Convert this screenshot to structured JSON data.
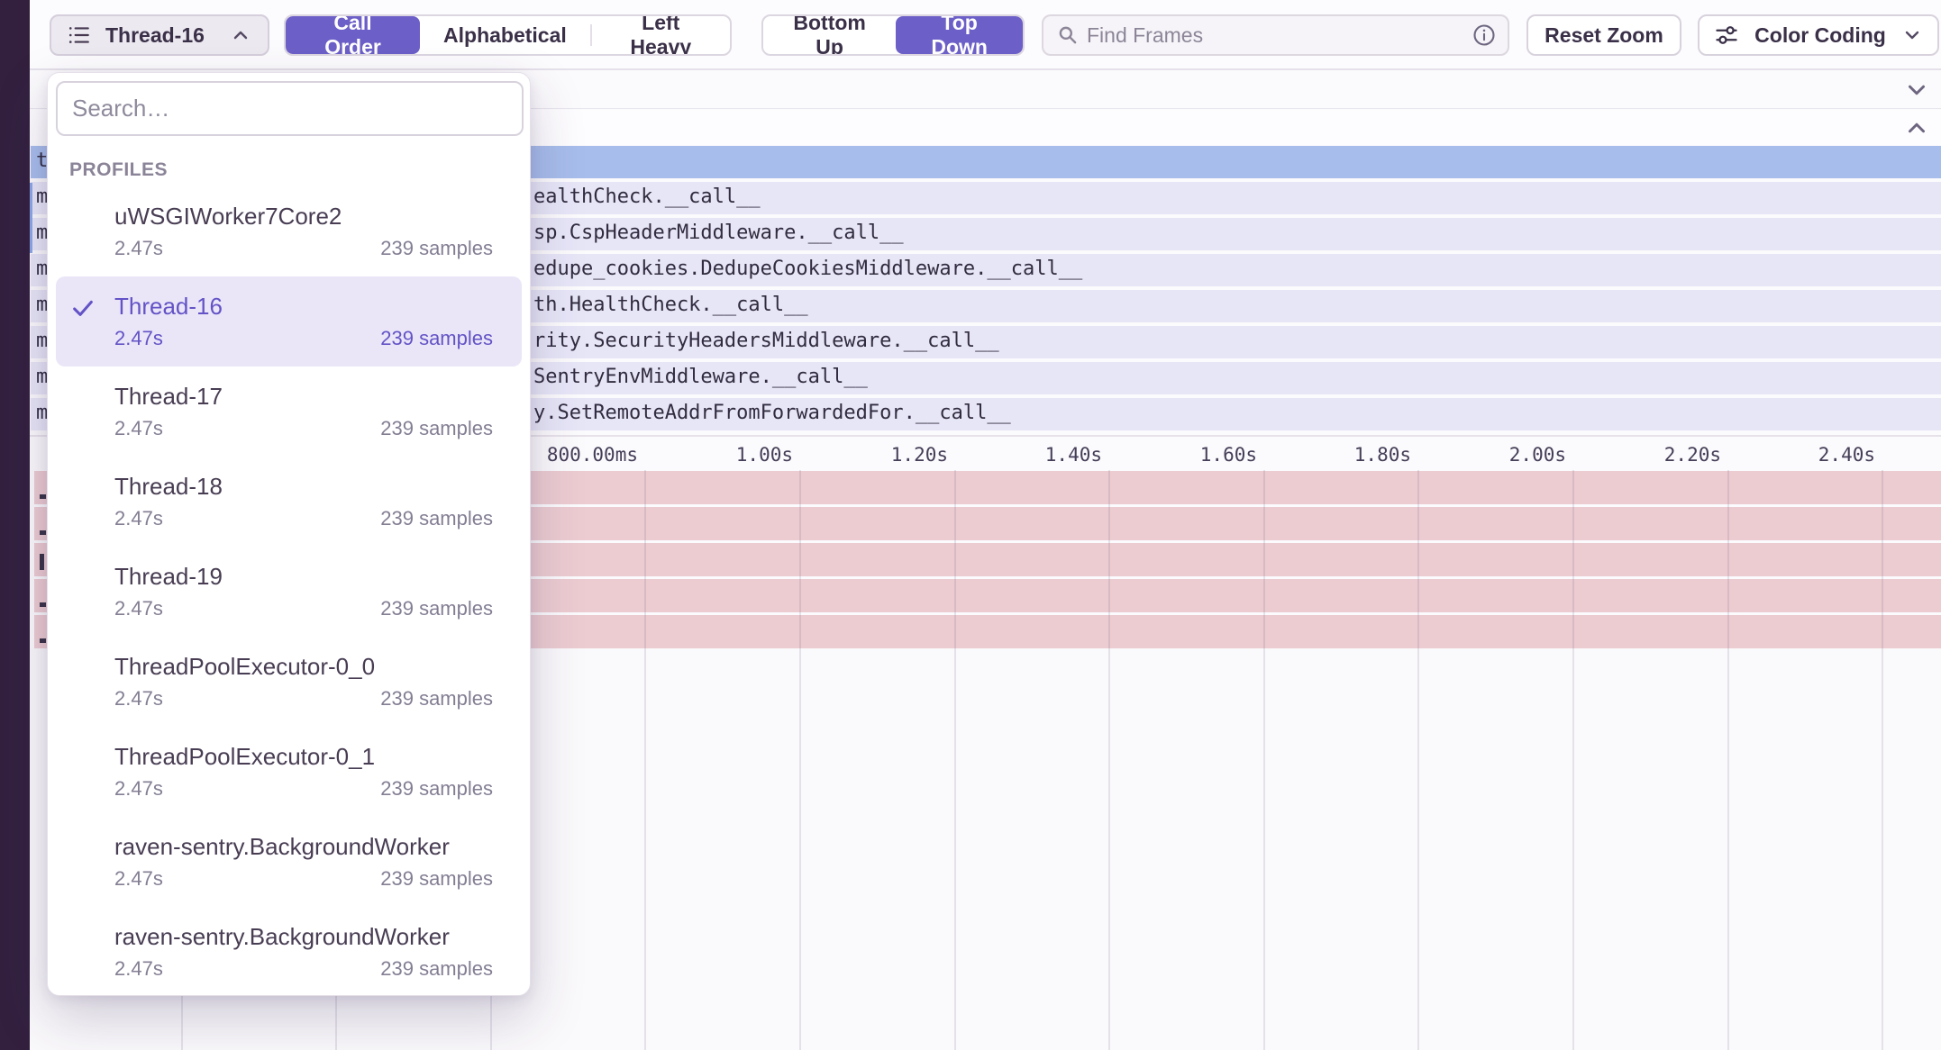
{
  "toolbar": {
    "thread_selector_label": "Thread-16",
    "sort_options": [
      {
        "label": "Call Order",
        "selected": true
      },
      {
        "label": "Alphabetical",
        "selected": false
      },
      {
        "label": "Left Heavy",
        "selected": false
      }
    ],
    "direction_options": [
      {
        "label": "Bottom Up",
        "selected": false
      },
      {
        "label": "Top Down",
        "selected": true
      }
    ],
    "find_frames_placeholder": "Find Frames",
    "reset_zoom_label": "Reset Zoom",
    "color_coding_label": "Color Coding"
  },
  "profiles_dropdown": {
    "search_placeholder": "Search…",
    "section_label": "PROFILES",
    "items": [
      {
        "name": "uWSGIWorker7Core2",
        "duration": "2.47s",
        "samples": "239 samples",
        "selected": false
      },
      {
        "name": "Thread-16",
        "duration": "2.47s",
        "samples": "239 samples",
        "selected": true
      },
      {
        "name": "Thread-17",
        "duration": "2.47s",
        "samples": "239 samples",
        "selected": false
      },
      {
        "name": "Thread-18",
        "duration": "2.47s",
        "samples": "239 samples",
        "selected": false
      },
      {
        "name": "Thread-19",
        "duration": "2.47s",
        "samples": "239 samples",
        "selected": false
      },
      {
        "name": "ThreadPoolExecutor-0_0",
        "duration": "2.47s",
        "samples": "239 samples",
        "selected": false
      },
      {
        "name": "ThreadPoolExecutor-0_1",
        "duration": "2.47s",
        "samples": "239 samples",
        "selected": false
      },
      {
        "name": "raven-sentry.BackgroundWorker",
        "duration": "2.47s",
        "samples": "239 samples",
        "selected": false
      },
      {
        "name": "raven-sentry.BackgroundWorker",
        "duration": "2.47s",
        "samples": "239 samples",
        "selected": false
      }
    ]
  },
  "flamegraph": {
    "rows": [
      {
        "edge": "t",
        "label": "",
        "selected": true
      },
      {
        "edge": "m",
        "label": "ealthCheck.__call__",
        "selected": false
      },
      {
        "edge": "m",
        "label": "sp.CspHeaderMiddleware.__call__",
        "selected": false
      },
      {
        "edge": "m",
        "label": "edupe_cookies.DedupeCookiesMiddleware.__call__",
        "selected": false
      },
      {
        "edge": "m",
        "label": "th.HealthCheck.__call__",
        "selected": false
      },
      {
        "edge": "m",
        "label": "rity.SecurityHeadersMiddleware.__call__",
        "selected": false
      },
      {
        "edge": "m",
        "label": "SentryEnvMiddleware.__call__",
        "selected": false
      },
      {
        "edge": "m",
        "label": "y.SetRemoteAddrFromForwardedFor.__call__",
        "selected": false
      }
    ],
    "axis_ticks": [
      {
        "label": "800.00ms",
        "seconds": 0.8
      },
      {
        "label": "1.00s",
        "seconds": 1.0
      },
      {
        "label": "1.20s",
        "seconds": 1.2
      },
      {
        "label": "1.40s",
        "seconds": 1.4
      },
      {
        "label": "1.60s",
        "seconds": 1.6
      },
      {
        "label": "1.80s",
        "seconds": 1.8
      },
      {
        "label": "2.00s",
        "seconds": 2.0
      },
      {
        "label": "2.20s",
        "seconds": 2.2
      },
      {
        "label": "2.40s",
        "seconds": 2.4
      }
    ],
    "gridline_seconds": [
      0.2,
      0.4,
      0.6,
      0.8,
      1.0,
      1.2,
      1.4,
      1.6,
      1.8,
      2.0,
      2.2,
      2.4
    ],
    "pink_rows": [
      {
        "mark": "low"
      },
      {
        "mark": "low"
      },
      {
        "mark": "tall"
      },
      {
        "mark": "low"
      },
      {
        "mark": "low"
      }
    ]
  },
  "colors": {
    "accent": "#6c5fc7",
    "sidebar_dark": "#33203f",
    "selected_frame_blue": "#a7bdeb",
    "frame_lavender": "#e7e6f7",
    "span_pink": "#ecccd1"
  }
}
